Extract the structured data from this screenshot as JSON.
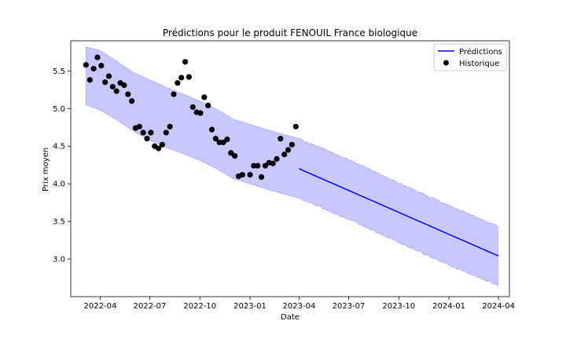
{
  "chart_data": {
    "type": "line",
    "title": "Prédictions pour le produit FENOUIL France biologique",
    "xlabel": "Date",
    "ylabel": "Prix moyen",
    "xlim": [
      "2022-02-06",
      "2024-04-21"
    ],
    "ylim": [
      2.5,
      5.9
    ],
    "x_ticks": [
      {
        "date": "2022-04-01",
        "label": "2022-04"
      },
      {
        "date": "2022-07-01",
        "label": "2022-07"
      },
      {
        "date": "2022-10-01",
        "label": "2022-10"
      },
      {
        "date": "2023-01-01",
        "label": "2023-01"
      },
      {
        "date": "2023-04-01",
        "label": "2023-04"
      },
      {
        "date": "2023-07-01",
        "label": "2023-07"
      },
      {
        "date": "2023-10-01",
        "label": "2023-10"
      },
      {
        "date": "2024-01-01",
        "label": "2024-01"
      },
      {
        "date": "2024-04-01",
        "label": "2024-04"
      }
    ],
    "y_ticks": [
      3.0,
      3.5,
      4.0,
      4.5,
      5.0,
      5.5
    ],
    "grid": false,
    "legend_position": "top-right",
    "colors": {
      "prediction": "#0000ff",
      "band": "#c8c8ff",
      "band_edge": "#9a9aff",
      "history": "#000000"
    },
    "series": [
      {
        "name": "Prédictions",
        "style": "line",
        "x": [
          "2023-04-01",
          "2024-04-01"
        ],
        "y": [
          4.2,
          3.04
        ]
      },
      {
        "name": "Historique",
        "style": "scatter",
        "points": [
          [
            "2022-03-06",
            5.58
          ],
          [
            "2022-03-13",
            5.38
          ],
          [
            "2022-03-20",
            5.53
          ],
          [
            "2022-03-27",
            5.68
          ],
          [
            "2022-04-03",
            5.57
          ],
          [
            "2022-04-10",
            5.35
          ],
          [
            "2022-04-17",
            5.43
          ],
          [
            "2022-04-24",
            5.29
          ],
          [
            "2022-05-01",
            5.23
          ],
          [
            "2022-05-08",
            5.34
          ],
          [
            "2022-05-15",
            5.31
          ],
          [
            "2022-05-22",
            5.19
          ],
          [
            "2022-05-29",
            5.1
          ],
          [
            "2022-06-05",
            4.74
          ],
          [
            "2022-06-12",
            4.76
          ],
          [
            "2022-06-19",
            4.68
          ],
          [
            "2022-06-26",
            4.6
          ],
          [
            "2022-07-03",
            4.68
          ],
          [
            "2022-07-10",
            4.5
          ],
          [
            "2022-07-17",
            4.47
          ],
          [
            "2022-07-24",
            4.52
          ],
          [
            "2022-07-31",
            4.68
          ],
          [
            "2022-08-07",
            4.76
          ],
          [
            "2022-08-14",
            5.19
          ],
          [
            "2022-08-21",
            5.34
          ],
          [
            "2022-08-28",
            5.41
          ],
          [
            "2022-09-04",
            5.62
          ],
          [
            "2022-09-11",
            5.42
          ],
          [
            "2022-09-18",
            5.02
          ],
          [
            "2022-09-25",
            4.95
          ],
          [
            "2022-10-02",
            4.94
          ],
          [
            "2022-10-09",
            5.15
          ],
          [
            "2022-10-16",
            5.04
          ],
          [
            "2022-10-23",
            4.72
          ],
          [
            "2022-10-30",
            4.6
          ],
          [
            "2022-11-06",
            4.55
          ],
          [
            "2022-11-13",
            4.55
          ],
          [
            "2022-11-20",
            4.59
          ],
          [
            "2022-11-27",
            4.41
          ],
          [
            "2022-12-04",
            4.37
          ],
          [
            "2022-12-11",
            4.1
          ],
          [
            "2022-12-18",
            4.12
          ],
          [
            "2023-01-01",
            4.12
          ],
          [
            "2023-01-08",
            4.24
          ],
          [
            "2023-01-15",
            4.24
          ],
          [
            "2023-01-22",
            4.09
          ],
          [
            "2023-01-29",
            4.24
          ],
          [
            "2023-02-05",
            4.28
          ],
          [
            "2023-02-12",
            4.27
          ],
          [
            "2023-02-19",
            4.33
          ],
          [
            "2023-02-26",
            4.6
          ],
          [
            "2023-03-05",
            4.39
          ],
          [
            "2023-03-12",
            4.45
          ],
          [
            "2023-03-19",
            4.52
          ],
          [
            "2023-03-26",
            4.76
          ]
        ]
      }
    ],
    "confidence_band": {
      "upper": [
        [
          "2022-03-06",
          5.82
        ],
        [
          "2022-04-01",
          5.77
        ],
        [
          "2022-05-01",
          5.63
        ],
        [
          "2022-06-01",
          5.48
        ],
        [
          "2022-07-01",
          5.38
        ],
        [
          "2022-08-01",
          5.28
        ],
        [
          "2022-09-01",
          5.19
        ],
        [
          "2022-10-01",
          5.1
        ],
        [
          "2022-11-01",
          4.99
        ],
        [
          "2022-12-01",
          4.86
        ],
        [
          "2023-01-01",
          4.79
        ],
        [
          "2023-02-01",
          4.72
        ],
        [
          "2023-03-01",
          4.66
        ],
        [
          "2023-04-01",
          4.6
        ],
        [
          "2023-07-01",
          4.32
        ],
        [
          "2023-10-01",
          4.01
        ],
        [
          "2024-01-01",
          3.71
        ],
        [
          "2024-04-01",
          3.43
        ]
      ],
      "lower": [
        [
          "2022-03-06",
          5.05
        ],
        [
          "2022-04-01",
          4.98
        ],
        [
          "2022-05-01",
          4.85
        ],
        [
          "2022-06-01",
          4.7
        ],
        [
          "2022-07-01",
          4.58
        ],
        [
          "2022-08-01",
          4.48
        ],
        [
          "2022-09-01",
          4.4
        ],
        [
          "2022-10-01",
          4.31
        ],
        [
          "2022-11-01",
          4.2
        ],
        [
          "2022-12-01",
          4.07
        ],
        [
          "2023-01-01",
          4.0
        ],
        [
          "2023-02-01",
          3.93
        ],
        [
          "2023-03-01",
          3.87
        ],
        [
          "2023-04-01",
          3.81
        ],
        [
          "2023-07-01",
          3.53
        ],
        [
          "2023-10-01",
          3.22
        ],
        [
          "2024-01-01",
          2.92
        ],
        [
          "2024-04-01",
          2.65
        ]
      ]
    }
  }
}
